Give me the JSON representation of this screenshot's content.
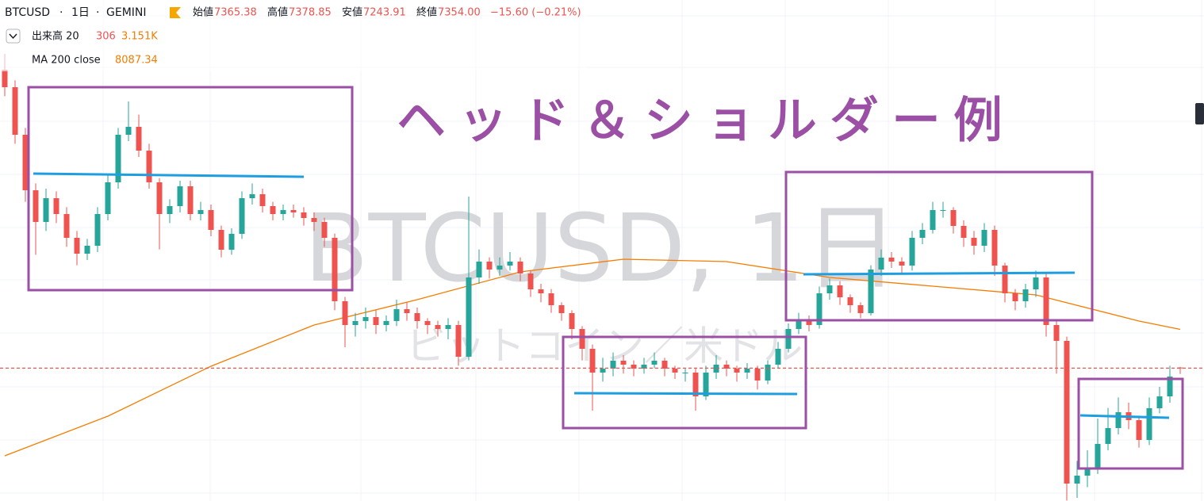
{
  "chart_data": {
    "type": "candlestick",
    "title": "ヘッド＆ショルダー例",
    "watermark": "BTCUSD, 1日",
    "watermark_sub": "ビットコイン／米ドル",
    "symbol": "BTCUSD",
    "interval": "1日",
    "exchange": "GEMINI",
    "legend": {
      "open_label": "始値",
      "open": "7365.38",
      "high_label": "高値",
      "high": "7378.85",
      "low_label": "安値",
      "low": "7243.91",
      "close_label": "終値",
      "close": "7354.00",
      "change": "−15.60 (−0.21%)"
    },
    "volume": {
      "label": "出来高 20",
      "value": "306",
      "average": "3.151K"
    },
    "up_color": "#26a69a",
    "down_color": "#ef5350",
    "ylim": [
      4840,
      14320
    ],
    "open": [
      13000,
      12670,
      11770,
      10720,
      10120,
      10570,
      10270,
      9820,
      9520,
      9670,
      10270,
      10870,
      11770,
      11920,
      11470,
      10870,
      10270,
      10420,
      10795,
      10270,
      10345,
      9970,
      9595,
      9895,
      10570,
      10645,
      10420,
      10270,
      10345,
      10300,
      10195,
      10120,
      9820,
      8620,
      8170,
      8245,
      8320,
      8170,
      8245,
      8470,
      8395,
      8245,
      8170,
      8095,
      8170,
      7570,
      9070,
      9370,
      9220,
      9295,
      9370,
      9145,
      8845,
      8770,
      8545,
      8395,
      8095,
      7720,
      7270,
      7345,
      7495,
      7420,
      7345,
      7420,
      7495,
      7345,
      7270,
      7270,
      6820,
      7270,
      7420,
      7345,
      7270,
      7345,
      7120,
      7420,
      7720,
      8095,
      8245,
      8170,
      8770,
      8920,
      8695,
      8545,
      8395,
      9220,
      9445,
      9370,
      9295,
      9820,
      9970,
      10345,
      10345,
      10045,
      9820,
      9670,
      9970,
      9295,
      8770,
      8620,
      8845,
      9070,
      8170,
      7870,
      5170,
      5320,
      5470,
      5920,
      6220,
      6520,
      6370,
      5995,
      6595,
      6820,
      7365.38
    ],
    "high": [
      13300,
      12800,
      11900,
      10850,
      10750,
      10700,
      10400,
      9950,
      9800,
      10400,
      11000,
      11900,
      12400,
      12150,
      11600,
      10950,
      10550,
      10900,
      10900,
      10500,
      10450,
      10050,
      10000,
      10700,
      10850,
      10750,
      10500,
      10450,
      10450,
      10400,
      10300,
      10200,
      9900,
      8700,
      8400,
      8500,
      8450,
      8350,
      8650,
      8600,
      8500,
      8300,
      8250,
      8300,
      8250,
      10600,
      9600,
      9450,
      9450,
      9550,
      9450,
      9200,
      8950,
      8850,
      8600,
      8450,
      8150,
      7800,
      7550,
      7650,
      7600,
      7500,
      7550,
      7650,
      7550,
      7400,
      7350,
      7350,
      7400,
      7600,
      7500,
      7400,
      7450,
      7400,
      7500,
      7850,
      8200,
      8400,
      8350,
      8900,
      9050,
      9000,
      8750,
      8600,
      9300,
      9600,
      9550,
      9450,
      9950,
      10100,
      10500,
      10500,
      10400,
      10150,
      9950,
      10100,
      10050,
      9350,
      8850,
      8950,
      9200,
      9150,
      8250,
      7950,
      5600,
      5800,
      6400,
      6600,
      6800,
      6700,
      6450,
      6800,
      7000,
      7400,
      7378.85
    ],
    "low": [
      12500,
      11600,
      10500,
      9500,
      9950,
      10100,
      9650,
      9300,
      9400,
      9550,
      10150,
      10750,
      11650,
      11350,
      10750,
      9600,
      10100,
      10300,
      10150,
      10150,
      9850,
      9450,
      9500,
      9800,
      10450,
      10300,
      10150,
      10150,
      10200,
      10050,
      9950,
      9650,
      8450,
      7750,
      7950,
      8100,
      8000,
      8050,
      8150,
      8250,
      8100,
      8000,
      7950,
      7900,
      7400,
      7500,
      8950,
      9050,
      9100,
      9200,
      9000,
      8700,
      8600,
      8400,
      8250,
      7900,
      7500,
      6550,
      7100,
      7200,
      7250,
      7200,
      7250,
      7350,
      7200,
      7150,
      7100,
      6550,
      6750,
      7150,
      7200,
      7100,
      7150,
      6950,
      7050,
      7350,
      7650,
      8000,
      8050,
      8100,
      8650,
      8550,
      8400,
      8300,
      8350,
      9100,
      9250,
      9150,
      9200,
      9700,
      9900,
      10200,
      9900,
      9650,
      9500,
      9550,
      9100,
      8600,
      8450,
      8500,
      8700,
      7950,
      7250,
      4850,
      4900,
      5100,
      5350,
      5800,
      6100,
      6200,
      5850,
      5900,
      6500,
      6700,
      7243.91
    ],
    "close": [
      12670,
      11770,
      10720,
      10120,
      10570,
      10270,
      9820,
      9520,
      9670,
      10270,
      10870,
      11770,
      11920,
      11470,
      10870,
      10270,
      10420,
      10795,
      10270,
      10345,
      9970,
      9595,
      9895,
      10570,
      10645,
      10420,
      10270,
      10345,
      10300,
      10195,
      10120,
      9820,
      8620,
      8170,
      8245,
      8320,
      8170,
      8245,
      8470,
      8395,
      8245,
      8170,
      8095,
      8170,
      7570,
      9070,
      9370,
      9220,
      9295,
      9370,
      9145,
      8845,
      8770,
      8545,
      8395,
      8095,
      7720,
      7270,
      7345,
      7495,
      7420,
      7345,
      7420,
      7495,
      7345,
      7270,
      7270,
      6820,
      7270,
      7420,
      7345,
      7270,
      7345,
      7120,
      7420,
      7720,
      8095,
      8245,
      8170,
      8770,
      8920,
      8695,
      8545,
      8395,
      9220,
      9445,
      9370,
      9295,
      9820,
      9970,
      10345,
      10345,
      10045,
      9820,
      9670,
      9970,
      9295,
      8770,
      8620,
      8845,
      9070,
      8170,
      7870,
      5170,
      5320,
      5470,
      5920,
      6220,
      6520,
      6370,
      5995,
      6595,
      6820,
      7195,
      7354
    ],
    "ma": {
      "name": "MA 200 close",
      "value_label": "8087.34",
      "color": "#f57c00",
      "x": [
        0,
        10,
        20,
        30,
        40,
        50,
        60,
        70,
        80,
        90,
        100,
        110,
        114
      ],
      "values": [
        5695,
        6445,
        7390,
        8170,
        8650,
        9175,
        9415,
        9370,
        9070,
        8905,
        8740,
        8245,
        8087.34
      ]
    }
  }
}
